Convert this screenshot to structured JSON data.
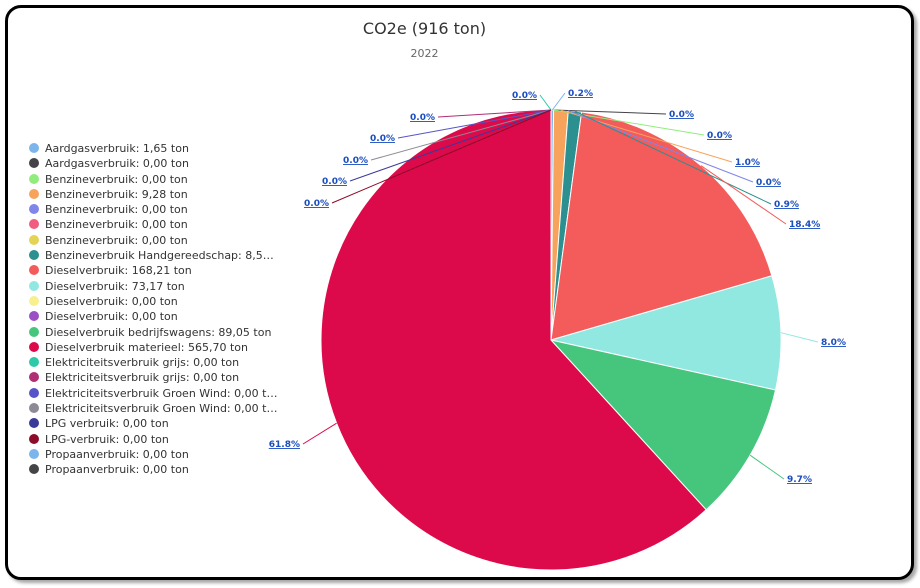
{
  "chart_data": {
    "type": "pie",
    "title": "CO2e (916 ton)",
    "subtitle": "2022",
    "legend_position": "left",
    "series": [
      {
        "name": "Aardgasverbruik: 1,65 ton",
        "value": 1.65,
        "label": "0.2%",
        "color": "#7cb5ec"
      },
      {
        "name": "Aardgasverbruik: 0,00 ton",
        "value": 0.0,
        "label": "0.0%",
        "color": "#434348"
      },
      {
        "name": "Benzineverbruik: 0,00 ton",
        "value": 0.0,
        "label": "0.0%",
        "color": "#90ed7d"
      },
      {
        "name": "Benzineverbruik: 9,28 ton",
        "value": 9.28,
        "label": "1.0%",
        "color": "#f7a35c"
      },
      {
        "name": "Benzineverbruik: 0,00 ton",
        "value": 0.0,
        "label": "0.0%",
        "color": "#8085e9"
      },
      {
        "name": "Benzineverbruik: 0,00 ton",
        "value": 0.0,
        "label": "",
        "color": "#f15c80"
      },
      {
        "name": "Benzineverbruik: 0,00 ton",
        "value": 0.0,
        "label": "",
        "color": "#e4d354"
      },
      {
        "name": "Benzineverbruik Handgereedschap: 8,52…",
        "value": 8.52,
        "label": "0.9%",
        "color": "#2b908f"
      },
      {
        "name": "Dieselverbruik: 168,21 ton",
        "value": 168.21,
        "label": "18.4%",
        "color": "#f45b5b"
      },
      {
        "name": "Dieselverbruik: 73,17 ton",
        "value": 73.17,
        "label": "8.0%",
        "color": "#91e8e1"
      },
      {
        "name": "Dieselverbruik: 0,00 ton",
        "value": 0.0,
        "label": "",
        "color": "#f7f08f"
      },
      {
        "name": "Dieselverbruik: 0,00 ton",
        "value": 0.0,
        "label": "",
        "color": "#9a4fc4"
      },
      {
        "name": "Dieselverbruik bedrijfswagens: 89,05 ton",
        "value": 89.05,
        "label": "9.7%",
        "color": "#46c67d"
      },
      {
        "name": "Dieselverbruik materieel: 565,70 ton",
        "value": 565.7,
        "label": "61.8%",
        "color": "#dc0a4a"
      },
      {
        "name": "Elektriciteitsverbruik grijs: 0,00 ton",
        "value": 0.0,
        "label": "0.0%",
        "color": "#2ec9a8"
      },
      {
        "name": "Elektriciteitsverbruik grijs: 0,00 ton",
        "value": 0.0,
        "label": "0.0%",
        "color": "#b02e74"
      },
      {
        "name": "Elektriciteitsverbruik Groen Wind: 0,00 t…",
        "value": 0.0,
        "label": "0.0%",
        "color": "#5654c8"
      },
      {
        "name": "Elektriciteitsverbruik Groen Wind: 0,00 t…",
        "value": 0.0,
        "label": "0.0%",
        "color": "#8d8a95"
      },
      {
        "name": "LPG verbruik: 0,00 ton",
        "value": 0.0,
        "label": "0.0%",
        "color": "#3a3a9a"
      },
      {
        "name": "LPG-verbruik: 0,00 ton",
        "value": 0.0,
        "label": "0.0%",
        "color": "#8c0c2a"
      },
      {
        "name": "Propaanverbruik: 0,00 ton",
        "value": 0.0,
        "label": "0.0%",
        "color": "#7cb5ec"
      },
      {
        "name": "Propaanverbruik: 0,00 ton",
        "value": 0.0,
        "label": "",
        "color": "#434348"
      }
    ]
  }
}
